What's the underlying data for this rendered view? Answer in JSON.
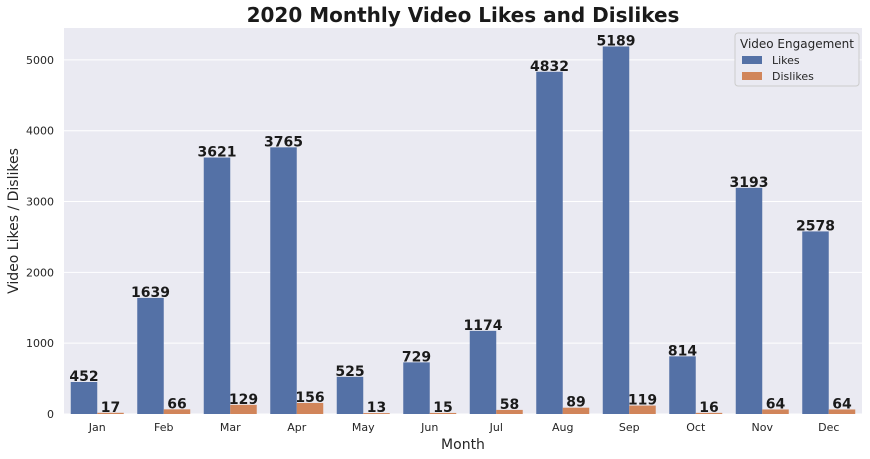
{
  "chart_data": {
    "type": "bar",
    "title": "2020 Monthly Video Likes and Dislikes",
    "xlabel": "Month",
    "ylabel": "Video Likes / Dislikes",
    "categories": [
      "Jan",
      "Feb",
      "Mar",
      "Apr",
      "May",
      "Jun",
      "Jul",
      "Aug",
      "Sep",
      "Oct",
      "Nov",
      "Dec"
    ],
    "series": [
      {
        "name": "Likes",
        "color": "#5471a6",
        "values": [
          452,
          1639,
          3621,
          3765,
          525,
          729,
          1174,
          4832,
          5189,
          814,
          3193,
          2578
        ]
      },
      {
        "name": "Dislikes",
        "color": "#d1855a",
        "values": [
          17,
          66,
          129,
          156,
          13,
          15,
          58,
          89,
          119,
          16,
          64,
          64
        ]
      }
    ],
    "ylim": [
      0,
      5450
    ],
    "yticks": [
      0,
      1000,
      2000,
      3000,
      4000,
      5000
    ],
    "grid": true,
    "legend": {
      "title": "Video Engagement",
      "placement": "top-right"
    },
    "plot_background": "#eaeaf2"
  }
}
